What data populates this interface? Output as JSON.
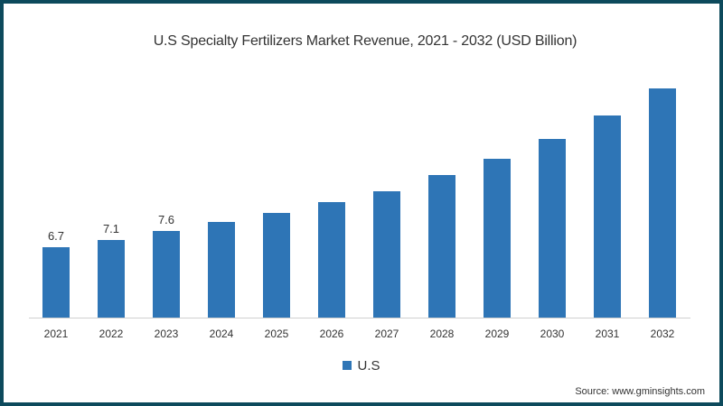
{
  "chart_data": {
    "type": "bar",
    "title": "U.S Specialty Fertilizers Market Revenue, 2021 - 2032 (USD Billion)",
    "xlabel": "",
    "ylabel": "",
    "categories": [
      "2021",
      "2022",
      "2023",
      "2024",
      "2025",
      "2026",
      "2027",
      "2028",
      "2029",
      "2030",
      "2031",
      "2032"
    ],
    "series": [
      {
        "name": "U.S",
        "color": "#2e75b6",
        "values": [
          6.7,
          7.1,
          7.6,
          8.1,
          8.6,
          9.2,
          9.8,
          10.7,
          11.6,
          12.7,
          14.0,
          15.5
        ],
        "data_labels": [
          "6.7",
          "7.1",
          "7.6",
          null,
          null,
          null,
          null,
          null,
          null,
          null,
          null,
          null
        ]
      }
    ],
    "grid": false,
    "y_axis_visible": false,
    "legend_position": "bottom",
    "annotations": [
      "Source: www.gminsights.com"
    ]
  },
  "title": "U.S Specialty Fertilizers Market Revenue, 2021 - 2032 (USD Billion)",
  "legend": {
    "label": "U.S",
    "color": "#2e75b6"
  },
  "source": "Source: www.gminsights.com",
  "labels": {
    "l2021": "6.7",
    "l2022": "7.1",
    "l2023": "7.6"
  },
  "ticks": [
    "2021",
    "2022",
    "2023",
    "2024",
    "2025",
    "2026",
    "2027",
    "2028",
    "2029",
    "2030",
    "2031",
    "2032"
  ]
}
